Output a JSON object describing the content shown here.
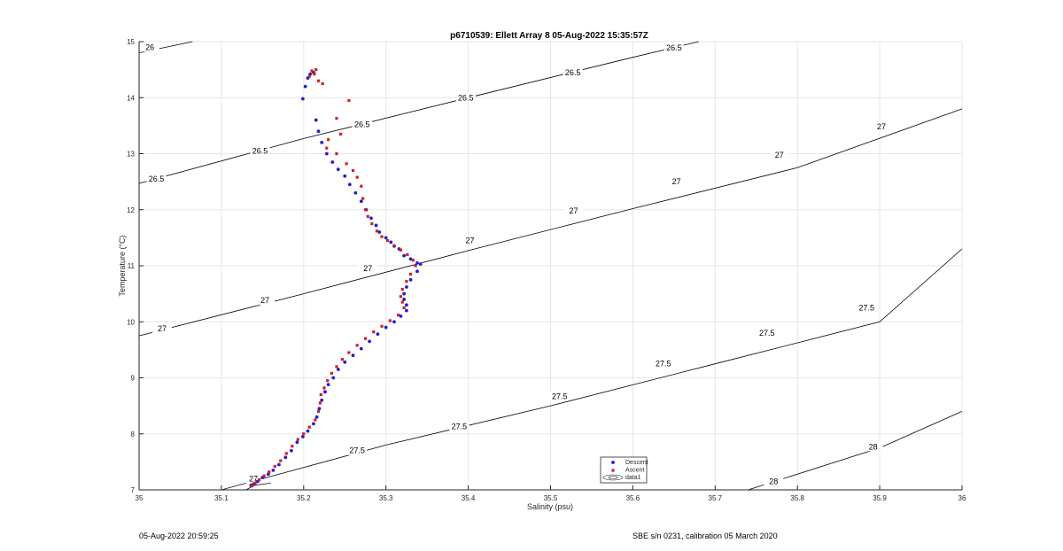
{
  "footer": {
    "left": "05-Aug-2022 20:59:25",
    "right": "SBE s/n 0231, calibration 05 March 2020"
  },
  "chart_data": {
    "type": "scatter",
    "title": "p6710539: Ellett Array 8 05-Aug-2022 15:35:57Z",
    "xlabel": "Salinity (psu)",
    "ylabel": "Temperature (°C)",
    "xlim": [
      35,
      36
    ],
    "ylim": [
      7,
      15
    ],
    "xticks": [
      "35",
      "35.1",
      "35.2",
      "35.3",
      "35.4",
      "35.5",
      "35.6",
      "35.7",
      "35.8",
      "35.9",
      "36"
    ],
    "yticks": [
      "7",
      "8",
      "9",
      "10",
      "11",
      "12",
      "13",
      "14",
      "15"
    ],
    "grid": true,
    "legend_position": "bottom-center",
    "legend": [
      "Descent",
      "Ascent",
      "data1"
    ],
    "colors": {
      "descent": "#1f1fd0",
      "ascent": "#d41f1f",
      "contour": "#000000",
      "grid": "#e6e6e6"
    },
    "contours": [
      {
        "level": "26",
        "points": [
          [
            35.0,
            14.8
          ],
          [
            35.065,
            15.0
          ]
        ],
        "labels": [
          {
            "text": "26",
            "x": 35.013,
            "y": 14.9
          }
        ]
      },
      {
        "level": "26.5",
        "points": [
          [
            35.0,
            12.47
          ],
          [
            35.2,
            13.27
          ],
          [
            35.4,
            14.0
          ],
          [
            35.6,
            14.72
          ],
          [
            35.68,
            15.0
          ]
        ],
        "labels": [
          {
            "text": "26.5",
            "x": 35.021,
            "y": 12.55
          },
          {
            "text": "26.5",
            "x": 35.147,
            "y": 13.05
          },
          {
            "text": "26.5",
            "x": 35.271,
            "y": 13.52
          },
          {
            "text": "26.5",
            "x": 35.397,
            "y": 14.0
          },
          {
            "text": "26.5",
            "x": 35.527,
            "y": 14.45
          },
          {
            "text": "26.5",
            "x": 35.65,
            "y": 14.89
          }
        ]
      },
      {
        "level": "27",
        "points": [
          [
            35.0,
            9.75
          ],
          [
            35.2,
            10.5
          ],
          [
            35.4,
            11.27
          ],
          [
            35.6,
            12.02
          ],
          [
            35.8,
            12.75
          ],
          [
            36.0,
            13.8
          ]
        ],
        "labels": [
          {
            "text": "27",
            "x": 35.028,
            "y": 9.88
          },
          {
            "text": "27",
            "x": 35.153,
            "y": 10.38
          },
          {
            "text": "27",
            "x": 35.278,
            "y": 10.95
          },
          {
            "text": "27",
            "x": 35.402,
            "y": 11.45
          },
          {
            "text": "27",
            "x": 35.528,
            "y": 11.98
          },
          {
            "text": "27",
            "x": 35.653,
            "y": 12.5
          },
          {
            "text": "27",
            "x": 35.778,
            "y": 12.98
          },
          {
            "text": "27",
            "x": 35.902,
            "y": 13.48
          }
        ]
      },
      {
        "level": "27.5",
        "points": [
          [
            35.1,
            7.0
          ],
          [
            35.3,
            7.8
          ],
          [
            35.5,
            8.5
          ],
          [
            35.7,
            9.25
          ],
          [
            35.9,
            10.0
          ],
          [
            36.0,
            11.3
          ]
        ],
        "labels": [
          {
            "text": "27.5",
            "x": 35.265,
            "y": 7.7
          },
          {
            "text": "27.5",
            "x": 35.389,
            "y": 8.13
          },
          {
            "text": "27.5",
            "x": 35.511,
            "y": 8.67
          },
          {
            "text": "27.5",
            "x": 35.637,
            "y": 9.25
          },
          {
            "text": "27.5",
            "x": 35.763,
            "y": 9.8
          },
          {
            "text": "27.5",
            "x": 35.884,
            "y": 10.25
          }
        ]
      },
      {
        "level": "27",
        "points": [
          [
            35.13,
            7.0
          ],
          [
            35.14,
            7.08
          ],
          [
            35.16,
            7.12
          ]
        ],
        "labels": [
          {
            "text": "27",
            "x": 35.139,
            "y": 7.2
          }
        ]
      },
      {
        "level": "28",
        "points": [
          [
            35.74,
            7.0
          ],
          [
            35.9,
            7.75
          ],
          [
            36.0,
            8.4
          ]
        ],
        "labels": [
          {
            "text": "28",
            "x": 35.771,
            "y": 7.15
          },
          {
            "text": "28",
            "x": 35.892,
            "y": 7.77
          }
        ]
      }
    ],
    "series": [
      {
        "name": "Descent",
        "x": [
          35.199,
          35.202,
          35.205,
          35.208,
          35.212,
          35.215,
          35.218,
          35.222,
          35.228,
          35.235,
          35.242,
          35.25,
          35.256,
          35.263,
          35.27,
          35.276,
          35.282,
          35.288,
          35.292,
          35.3,
          35.306,
          35.31,
          35.316,
          35.322,
          35.33,
          35.338,
          35.342,
          35.338,
          35.33,
          35.325,
          35.322,
          35.322,
          35.325,
          35.325,
          35.318,
          35.31,
          35.3,
          35.29,
          35.28,
          35.27,
          35.26,
          35.25,
          35.242,
          35.236,
          35.23,
          35.226,
          35.222,
          35.219,
          35.216,
          35.212,
          35.205,
          35.199,
          35.192,
          35.185,
          35.178,
          35.17,
          35.163,
          35.157,
          35.15,
          35.144,
          35.139,
          35.136
        ],
        "y": [
          13.98,
          14.2,
          14.35,
          14.42,
          14.45,
          13.6,
          13.4,
          13.2,
          13.0,
          12.85,
          12.72,
          12.6,
          12.45,
          12.3,
          12.15,
          12.0,
          11.85,
          11.72,
          11.6,
          11.5,
          11.42,
          11.35,
          11.3,
          11.18,
          11.12,
          11.05,
          11.03,
          10.9,
          10.75,
          10.62,
          10.5,
          10.4,
          10.3,
          10.2,
          10.1,
          10.0,
          9.9,
          9.78,
          9.65,
          9.52,
          9.4,
          9.28,
          9.15,
          9.0,
          8.88,
          8.75,
          8.6,
          8.45,
          8.3,
          8.18,
          8.05,
          7.95,
          7.85,
          7.7,
          7.58,
          7.45,
          7.35,
          7.28,
          7.22,
          7.15,
          7.1,
          7.08
        ]
      },
      {
        "name": "Ascent",
        "x": [
          35.207,
          35.21,
          35.213,
          35.215,
          35.218,
          35.223,
          35.255,
          35.24,
          35.245,
          35.23,
          35.228,
          35.24,
          35.252,
          35.26,
          35.265,
          35.27,
          35.272,
          35.275,
          35.278,
          35.283,
          35.289,
          35.295,
          35.302,
          35.31,
          35.318,
          35.326,
          35.333,
          35.336,
          35.33,
          35.325,
          35.32,
          35.318,
          35.32,
          35.322,
          35.315,
          35.305,
          35.295,
          35.285,
          35.275,
          35.265,
          35.255,
          35.247,
          35.24,
          35.234,
          35.229,
          35.225,
          35.221,
          35.22,
          35.218,
          35.214,
          35.207,
          35.2,
          35.193,
          35.186,
          35.179,
          35.172,
          35.165,
          35.158,
          35.152,
          35.146,
          35.141,
          35.137
        ],
        "y": [
          14.38,
          14.48,
          14.42,
          14.5,
          14.3,
          14.25,
          13.95,
          13.63,
          13.35,
          13.25,
          13.1,
          13.0,
          12.82,
          12.7,
          12.58,
          12.42,
          12.2,
          12.0,
          11.88,
          11.75,
          11.62,
          11.52,
          11.45,
          11.36,
          11.28,
          11.2,
          11.1,
          11.0,
          10.85,
          10.72,
          10.58,
          10.45,
          10.35,
          10.25,
          10.12,
          10.02,
          9.92,
          9.82,
          9.7,
          9.58,
          9.45,
          9.33,
          9.2,
          9.08,
          8.95,
          8.82,
          8.7,
          8.55,
          8.4,
          8.25,
          8.12,
          8.0,
          7.9,
          7.78,
          7.65,
          7.52,
          7.42,
          7.32,
          7.25,
          7.18,
          7.12,
          7.07
        ]
      }
    ]
  }
}
